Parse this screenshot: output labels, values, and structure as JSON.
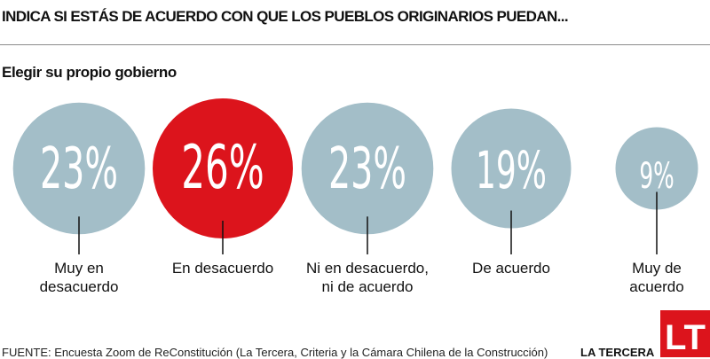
{
  "chart_data": {
    "type": "bubble",
    "title": "INDICA SI ESTÁS DE ACUERDO CON QUE LOS PUEBLOS ORIGINARIOS PUEDAN...",
    "subtitle": "Elegir su propio gobierno",
    "unit": "%",
    "categories": [
      "Muy en desacuerdo",
      "En desacuerdo",
      "Ni en desacuerdo, ni de acuerdo",
      "De acuerdo",
      "Muy de acuerdo"
    ],
    "category_lines": [
      [
        "Muy en",
        "desacuerdo"
      ],
      [
        "En desacuerdo"
      ],
      [
        "Ni en desacuerdo,",
        "ni de acuerdo"
      ],
      [
        "De acuerdo"
      ],
      [
        "Muy de",
        "acuerdo"
      ]
    ],
    "values": [
      23,
      26,
      23,
      19,
      9
    ],
    "value_labels": [
      "23%",
      "26%",
      "23%",
      "19%",
      "9%"
    ],
    "highlight_index": 1,
    "colors": {
      "default": "#a3bec8",
      "highlight": "#dc141c",
      "text_on_bubble": "#ffffff",
      "leader": "#111111"
    }
  },
  "footer": {
    "source": "FUENTE: Encuesta Zoom de ReConstitución (La Tercera, Criteria y la Cámara Chilena de la Construcción)",
    "brand": "LA TERCERA"
  },
  "logo": {
    "text": "LT",
    "color": "#dc141c"
  }
}
